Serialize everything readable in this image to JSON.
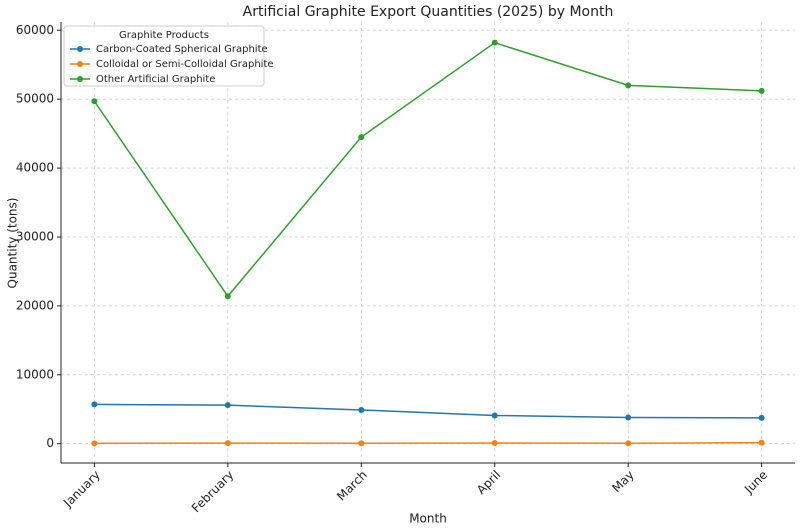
{
  "chart_data": {
    "type": "line",
    "title": "Artificial Graphite Export Quantities (2025) by Month",
    "x_label": "Month",
    "y_label": "Quantity (tons)",
    "categories": [
      "January",
      "February",
      "March",
      "April",
      "May",
      "June"
    ],
    "series": [
      {
        "name": "Carbon-Coated Spherical Graphite",
        "color": "#1f77b4",
        "values": [
          5700,
          5600,
          4900,
          4100,
          3800,
          3750
        ]
      },
      {
        "name": "Colloidal or Semi-Colloidal Graphite",
        "color": "#ff7f0e",
        "values": [
          50,
          80,
          70,
          100,
          60,
          150
        ]
      },
      {
        "name": "Other Artificial Graphite",
        "color": "#2ca02c",
        "values": [
          49700,
          21400,
          44500,
          58200,
          52000,
          51200
        ]
      }
    ],
    "ylim": [
      -2800,
      61200
    ],
    "yticks": [
      0,
      10000,
      20000,
      30000,
      40000,
      50000,
      60000
    ],
    "grid": true,
    "legend_title": "Graphite Products",
    "legend_position": "upper-left"
  }
}
